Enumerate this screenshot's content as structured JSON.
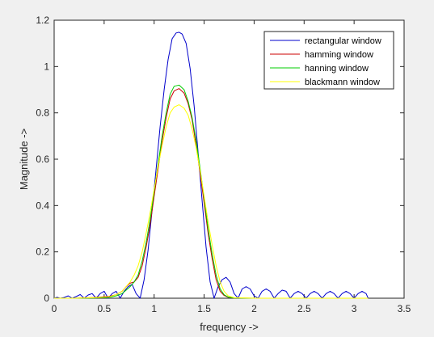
{
  "chart_data": {
    "type": "line",
    "title": "",
    "xlabel": "frequency ->",
    "ylabel": "Magnitude ->",
    "xlim": [
      0,
      3.5
    ],
    "ylim": [
      0,
      1.2
    ],
    "xticks": [
      0,
      0.5,
      1,
      1.5,
      2,
      2.5,
      3,
      3.5
    ],
    "xtick_labels": [
      "0",
      "0.5",
      "1",
      "1.5",
      "2",
      "2.5",
      "3",
      "3.5"
    ],
    "yticks": [
      0,
      0.2,
      0.4,
      0.6,
      0.8,
      1,
      1.2
    ],
    "ytick_labels": [
      "0",
      "0.2",
      "0.4",
      "0.6",
      "0.8",
      "1",
      "1.2"
    ],
    "grid": false,
    "legend_position": "top-right",
    "series": [
      {
        "name": "rectangular window",
        "color": "#0000cc",
        "x": [
          0,
          0.03,
          0.06,
          0.1,
          0.14,
          0.18,
          0.22,
          0.26,
          0.3,
          0.34,
          0.38,
          0.42,
          0.46,
          0.5,
          0.54,
          0.58,
          0.62,
          0.66,
          0.7,
          0.74,
          0.78,
          0.82,
          0.86,
          0.9,
          0.94,
          0.98,
          1.02,
          1.06,
          1.1,
          1.14,
          1.18,
          1.22,
          1.25,
          1.28,
          1.32,
          1.36,
          1.4,
          1.44,
          1.48,
          1.52,
          1.56,
          1.6,
          1.64,
          1.68,
          1.72,
          1.76,
          1.8,
          1.84,
          1.88,
          1.92,
          1.96,
          2.0,
          2.04,
          2.08,
          2.12,
          2.16,
          2.2,
          2.24,
          2.28,
          2.32,
          2.36,
          2.4,
          2.44,
          2.48,
          2.52,
          2.56,
          2.6,
          2.64,
          2.68,
          2.72,
          2.76,
          2.8,
          2.84,
          2.88,
          2.92,
          2.96,
          3.0,
          3.04,
          3.08,
          3.12,
          3.14
        ],
        "y": [
          0,
          0.004,
          0.0,
          0.003,
          0.01,
          0.0,
          0.007,
          0.016,
          0.0,
          0.014,
          0.02,
          0.0,
          0.02,
          0.03,
          0.0,
          0.02,
          0.03,
          0.0,
          0.03,
          0.05,
          0.06,
          0.02,
          0.0,
          0.08,
          0.21,
          0.38,
          0.56,
          0.74,
          0.9,
          1.03,
          1.12,
          1.145,
          1.148,
          1.14,
          1.1,
          0.99,
          0.83,
          0.63,
          0.42,
          0.22,
          0.07,
          0.0,
          0.05,
          0.08,
          0.09,
          0.07,
          0.02,
          0.0,
          0.04,
          0.05,
          0.04,
          0.01,
          0.0,
          0.03,
          0.04,
          0.03,
          0.0,
          0.02,
          0.035,
          0.03,
          0.0,
          0.02,
          0.03,
          0.02,
          0.0,
          0.02,
          0.03,
          0.02,
          0.0,
          0.02,
          0.03,
          0.02,
          0.0,
          0.02,
          0.03,
          0.02,
          0.0,
          0.02,
          0.03,
          0.02,
          0.0
        ]
      },
      {
        "name": "hamming window",
        "color": "#cc0000",
        "x": [
          0,
          0.2,
          0.4,
          0.55,
          0.62,
          0.68,
          0.72,
          0.76,
          0.8,
          0.84,
          0.88,
          0.92,
          0.96,
          1.0,
          1.04,
          1.08,
          1.12,
          1.16,
          1.2,
          1.25,
          1.3,
          1.34,
          1.38,
          1.42,
          1.46,
          1.5,
          1.54,
          1.58,
          1.62,
          1.66,
          1.7,
          1.74,
          1.8,
          2.0,
          2.4,
          2.8,
          3.14
        ],
        "y": [
          0,
          0.0,
          0.003,
          0.008,
          0.015,
          0.03,
          0.05,
          0.065,
          0.07,
          0.09,
          0.14,
          0.22,
          0.32,
          0.44,
          0.56,
          0.68,
          0.78,
          0.86,
          0.895,
          0.905,
          0.885,
          0.84,
          0.77,
          0.66,
          0.54,
          0.41,
          0.28,
          0.17,
          0.08,
          0.03,
          0.012,
          0.004,
          0.001,
          0.0,
          0.0,
          0.0,
          0.0
        ]
      },
      {
        "name": "hanning window",
        "color": "#00cc00",
        "x": [
          0,
          0.2,
          0.4,
          0.55,
          0.62,
          0.68,
          0.72,
          0.76,
          0.8,
          0.84,
          0.88,
          0.92,
          0.96,
          1.0,
          1.04,
          1.08,
          1.12,
          1.16,
          1.2,
          1.25,
          1.3,
          1.34,
          1.38,
          1.42,
          1.46,
          1.5,
          1.54,
          1.58,
          1.62,
          1.66,
          1.7,
          1.74,
          1.8,
          2.0,
          2.4,
          2.8,
          3.14
        ],
        "y": [
          0,
          0.0,
          0.001,
          0.004,
          0.01,
          0.02,
          0.035,
          0.05,
          0.07,
          0.1,
          0.16,
          0.24,
          0.34,
          0.46,
          0.58,
          0.7,
          0.8,
          0.88,
          0.915,
          0.92,
          0.9,
          0.85,
          0.78,
          0.68,
          0.56,
          0.43,
          0.3,
          0.19,
          0.1,
          0.04,
          0.015,
          0.005,
          0.001,
          0.0,
          0.0,
          0.0,
          0.0
        ]
      },
      {
        "name": "blackmann window",
        "color": "#ffff00",
        "x": [
          0,
          0.2,
          0.4,
          0.55,
          0.62,
          0.68,
          0.72,
          0.76,
          0.8,
          0.84,
          0.88,
          0.92,
          0.96,
          1.0,
          1.04,
          1.08,
          1.12,
          1.16,
          1.2,
          1.25,
          1.3,
          1.34,
          1.38,
          1.42,
          1.46,
          1.5,
          1.54,
          1.58,
          1.62,
          1.66,
          1.7,
          1.74,
          1.8,
          2.0,
          2.4,
          2.8,
          3.14
        ],
        "y": [
          0,
          0.0,
          0.002,
          0.006,
          0.015,
          0.03,
          0.05,
          0.07,
          0.1,
          0.14,
          0.2,
          0.28,
          0.37,
          0.47,
          0.57,
          0.66,
          0.74,
          0.8,
          0.825,
          0.835,
          0.82,
          0.79,
          0.73,
          0.65,
          0.55,
          0.44,
          0.33,
          0.23,
          0.14,
          0.07,
          0.03,
          0.01,
          0.002,
          0.0,
          0.0,
          0.0,
          0.0
        ]
      }
    ]
  }
}
